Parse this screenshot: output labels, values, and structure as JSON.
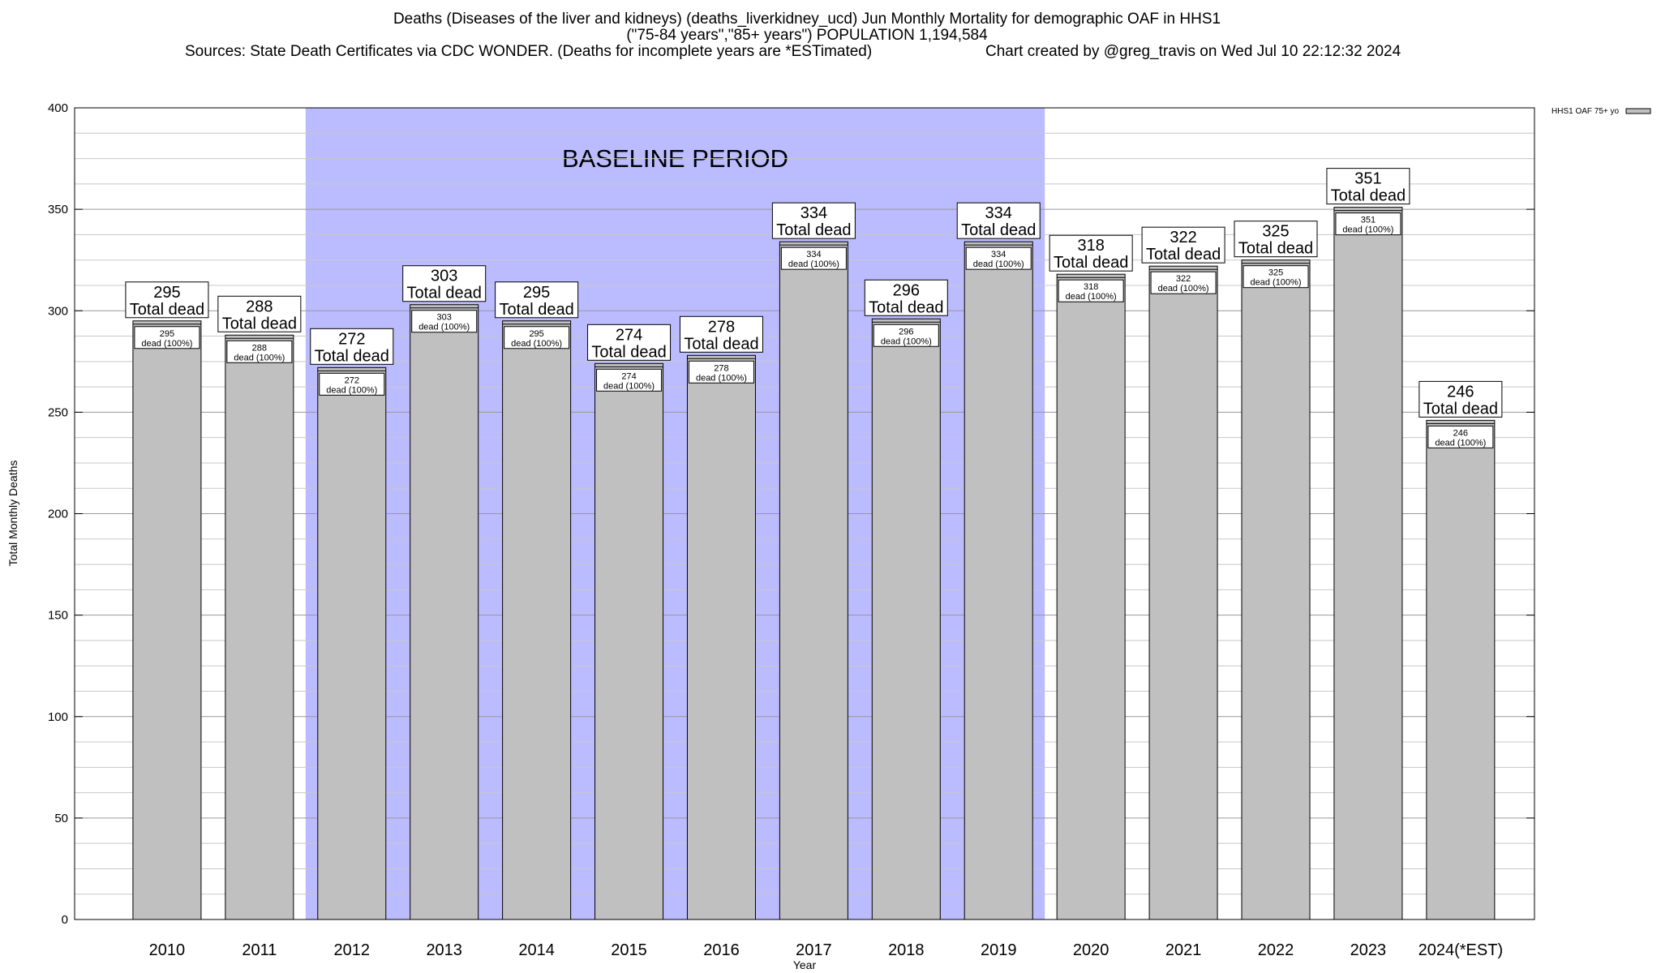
{
  "header": {
    "title_line1": "Deaths (Diseases of the liver and kidneys) (deaths_liverkidney_ucd) Jun Monthly Mortality for demographic OAF in HHS1",
    "title_line2": "(\"75-84 years\",\"85+ years\") POPULATION 1,194,584",
    "sources": "Sources: State Death Certificates via CDC WONDER. (Deaths for incomplete years are *ESTimated)",
    "credit": "Chart created by @greg_travis on Wed Jul 10 22:12:32 2024"
  },
  "chart_data": {
    "type": "bar",
    "categories": [
      "2010",
      "2011",
      "2012",
      "2013",
      "2014",
      "2015",
      "2016",
      "2017",
      "2018",
      "2019",
      "2020",
      "2021",
      "2022",
      "2023",
      "2024(*EST)"
    ],
    "series": [
      {
        "name": "HHS1 OAF 75+ yo",
        "values": [
          295,
          288,
          272,
          303,
          295,
          274,
          278,
          334,
          296,
          334,
          318,
          322,
          325,
          351,
          246
        ]
      }
    ],
    "xlabel": "Year",
    "ylabel": "Total Monthly Deaths",
    "ylim": [
      0,
      400
    ],
    "yticks": [
      0,
      50,
      100,
      150,
      200,
      250,
      300,
      350,
      400
    ],
    "total_label_suffix": "Total dead",
    "inner_label_suffix": "dead (100%)",
    "baseline": {
      "label": "BASELINE PERIOD",
      "from": "2012",
      "to": "2019",
      "color": "#bbbbff"
    },
    "bar_color": "#c0c0c0",
    "grid": true,
    "legend_position": "top-right"
  }
}
